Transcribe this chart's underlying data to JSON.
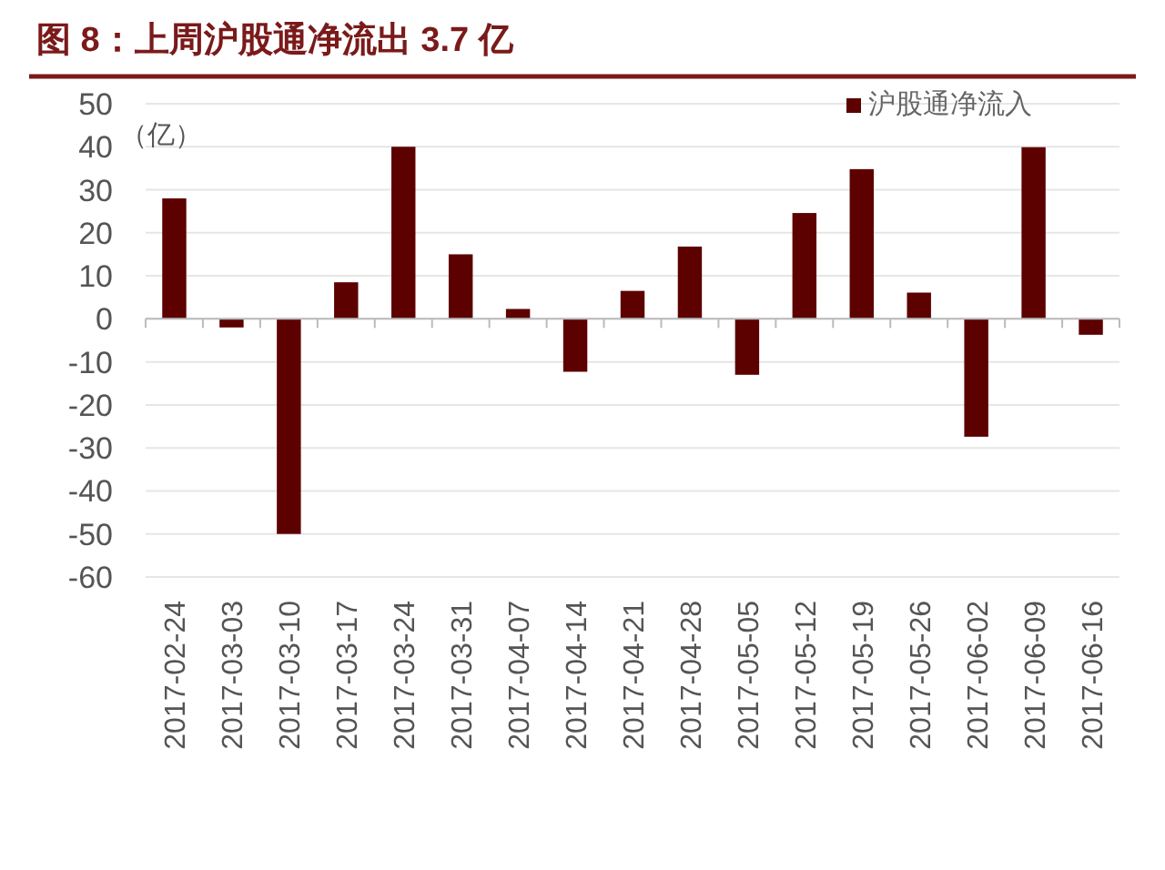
{
  "chart_data": {
    "type": "bar",
    "title": "图 8：上周沪股通净流出 3.7 亿",
    "ylabel": "（亿）",
    "categories": [
      "2017-02-24",
      "2017-03-03",
      "2017-03-10",
      "2017-03-17",
      "2017-03-24",
      "2017-03-31",
      "2017-04-07",
      "2017-04-14",
      "2017-04-21",
      "2017-04-28",
      "2017-05-05",
      "2017-05-12",
      "2017-05-19",
      "2017-05-26",
      "2017-06-02",
      "2017-06-09",
      "2017-06-16"
    ],
    "series": [
      {
        "name": "沪股通净流入",
        "color": "#5c0000",
        "values": [
          28,
          -2,
          -50,
          8.5,
          40,
          15,
          2.3,
          -12.3,
          6.5,
          16.8,
          -13,
          24.6,
          34.8,
          6.1,
          -27.4,
          39.9,
          -3.7
        ]
      }
    ],
    "ylim": [
      -60,
      50
    ],
    "yticks": [
      -60,
      -50,
      -40,
      -30,
      -20,
      -10,
      0,
      10,
      20,
      30,
      40,
      50
    ],
    "grid": "y",
    "legend": "top right"
  }
}
